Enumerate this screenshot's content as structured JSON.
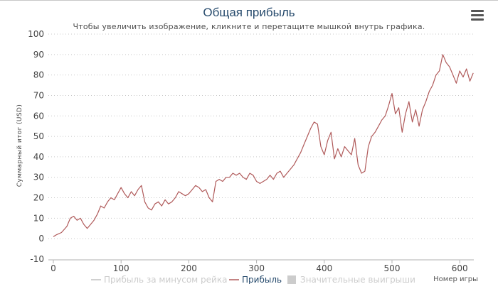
{
  "window": {
    "menu_icon": "hamburger-menu-icon"
  },
  "colors": {
    "title": "#274b6d",
    "profit_line": "#b05a5a",
    "rake_line": "#c0c0c0",
    "grid": "#c8c8c8",
    "legend_active": "#274b6d",
    "legend_hidden": "#cccccc"
  },
  "chart_data": {
    "type": "line",
    "title": "Общая прибыль",
    "subtitle": "Чтобы увеличить изображение, кликните и перетащите мышкой внутрь графика.",
    "xlabel": "Номер игры",
    "ylabel": "Суммарный итог (USD)",
    "xlim": [
      0,
      625
    ],
    "ylim": [
      -10,
      100
    ],
    "x_ticks": [
      "0",
      "100",
      "200",
      "300",
      "400",
      "500",
      "600"
    ],
    "y_ticks": [
      "-10",
      "0",
      "10",
      "20",
      "30",
      "40",
      "50",
      "60",
      "70",
      "80",
      "90",
      "100"
    ],
    "grid": true,
    "grid_style": "dotted horizontal",
    "legend_position": "bottom",
    "legend": [
      {
        "name": "Прибыль за минусом рейка",
        "visible": false,
        "symbol": "line"
      },
      {
        "name": "Прибыль",
        "visible": true,
        "symbol": "line"
      },
      {
        "name": "Значительные выигрыши",
        "visible": false,
        "symbol": "box"
      }
    ],
    "series": [
      {
        "name": "Прибыль",
        "x": [
          0,
          5,
          12,
          20,
          25,
          30,
          35,
          40,
          45,
          50,
          55,
          60,
          65,
          70,
          75,
          80,
          85,
          90,
          95,
          100,
          105,
          110,
          115,
          120,
          125,
          130,
          135,
          140,
          145,
          150,
          155,
          160,
          165,
          170,
          175,
          180,
          185,
          190,
          195,
          200,
          205,
          210,
          215,
          220,
          225,
          230,
          235,
          240,
          245,
          250,
          255,
          260,
          265,
          270,
          275,
          280,
          285,
          290,
          295,
          300,
          305,
          310,
          315,
          320,
          325,
          330,
          335,
          340,
          345,
          350,
          355,
          360,
          365,
          370,
          375,
          380,
          385,
          390,
          395,
          400,
          405,
          410,
          415,
          420,
          425,
          430,
          435,
          440,
          445,
          450,
          455,
          460,
          465,
          470,
          475,
          480,
          485,
          490,
          495,
          500,
          505,
          510,
          515,
          520,
          525,
          530,
          535,
          540,
          545,
          550,
          555,
          560,
          565,
          570,
          575,
          580,
          585,
          590,
          595,
          600,
          605,
          610,
          615,
          620
        ],
        "y": [
          1,
          2,
          3,
          6,
          10,
          11,
          9,
          10,
          7,
          5,
          7,
          9,
          12,
          16,
          15,
          18,
          20,
          19,
          22,
          25,
          22,
          20,
          23,
          21,
          24,
          26,
          18,
          15,
          14,
          17,
          18,
          16,
          19,
          17,
          18,
          20,
          23,
          22,
          21,
          22,
          24,
          26,
          25,
          23,
          24,
          20,
          18,
          28,
          29,
          28,
          30,
          30,
          32,
          31,
          32,
          30,
          29,
          32,
          31,
          28,
          27,
          28,
          29,
          31,
          29,
          32,
          33,
          30,
          32,
          34,
          36,
          39,
          42,
          46,
          50,
          54,
          57,
          56,
          45,
          41,
          48,
          52,
          39,
          44,
          40,
          45,
          43,
          41,
          49,
          36,
          32,
          33,
          45,
          50,
          52,
          55,
          58,
          60,
          65,
          71,
          61,
          64,
          52,
          61,
          67,
          57,
          63,
          55,
          63,
          67,
          72,
          75,
          80,
          82,
          90,
          86,
          84,
          80,
          76,
          82,
          79,
          83,
          77,
          81
        ]
      }
    ]
  }
}
